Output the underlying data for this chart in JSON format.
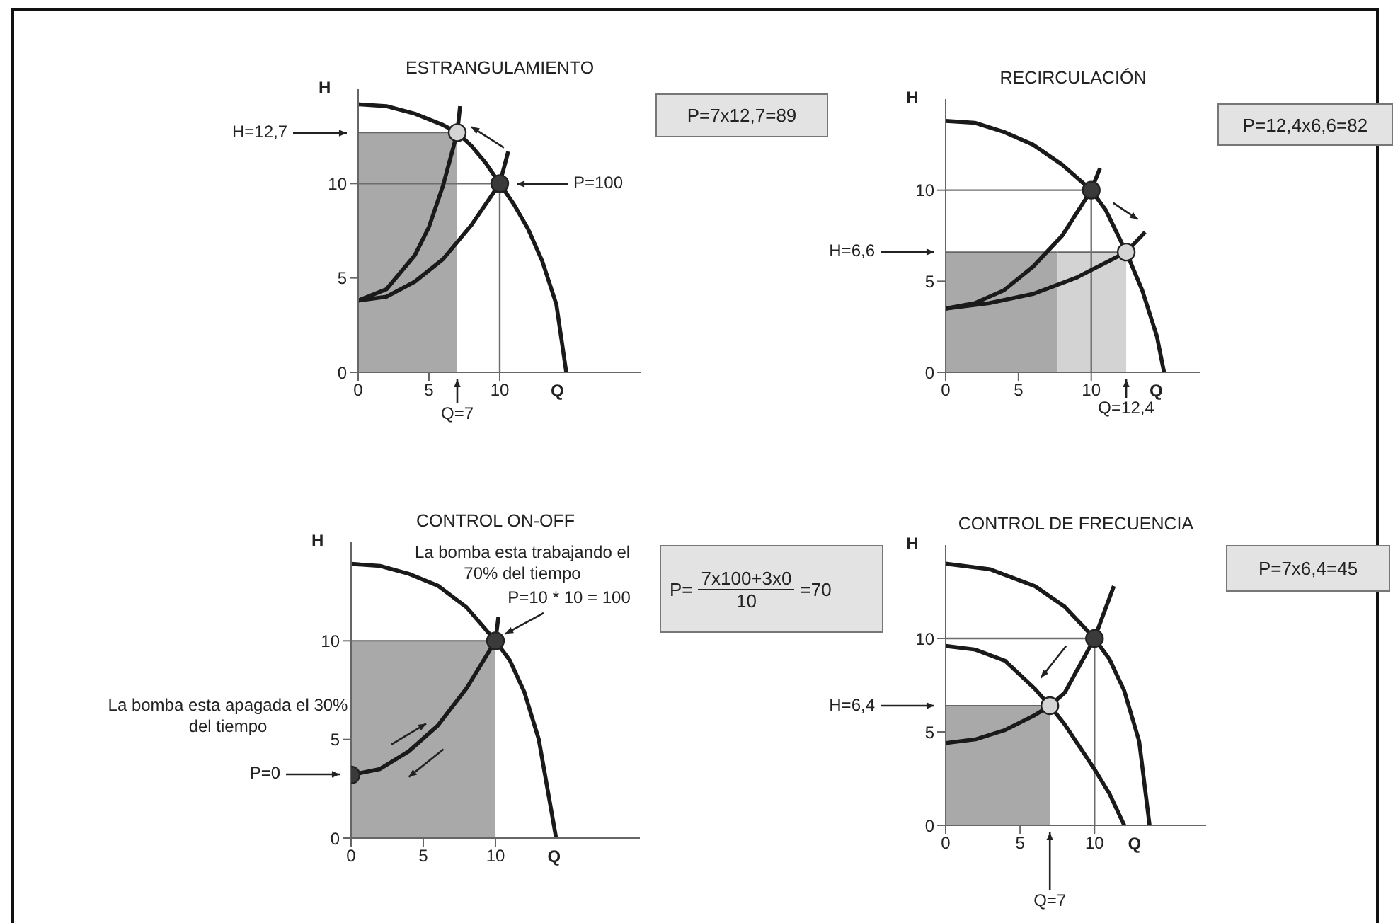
{
  "chart_data": [
    {
      "type": "line",
      "title": "ESTRANGULAMIENTO",
      "xlabel": "Q",
      "ylabel": "H",
      "xlim": [
        0,
        20
      ],
      "ylim": [
        0,
        15
      ],
      "xticks": [
        0,
        5,
        10
      ],
      "yticks": [
        0,
        5,
        10
      ],
      "series": [
        {
          "type": "area",
          "x": [
            0,
            7
          ],
          "values": [
            12.7,
            12.7
          ],
          "color": "#a9a9a9"
        },
        {
          "type": "line",
          "x": [
            0,
            10,
            10
          ],
          "values": [
            10,
            10,
            0
          ],
          "color": "#6e6e6e"
        },
        {
          "type": "line",
          "x": [
            0,
            2,
            4,
            6,
            7,
            8,
            9,
            10,
            11,
            12,
            13,
            14,
            14.7
          ],
          "values": [
            14.2,
            14.1,
            13.7,
            13.1,
            12.7,
            12,
            11.1,
            10,
            8.9,
            7.6,
            5.9,
            3.6,
            0
          ],
          "color": "#1a1a1a"
        },
        {
          "type": "line",
          "x": [
            0,
            2,
            4,
            6,
            8,
            10,
            10.6
          ],
          "values": [
            3.8,
            4,
            4.8,
            6,
            7.8,
            10,
            11.7
          ],
          "color": "#1a1a1a"
        },
        {
          "type": "line",
          "x": [
            0,
            2,
            4,
            5,
            6,
            7,
            7.2
          ],
          "values": [
            3.8,
            4.4,
            6.2,
            7.7,
            9.9,
            12.7,
            14.1
          ],
          "color": "#1a1a1a"
        },
        {
          "type": "scatter",
          "x": [
            10,
            7
          ],
          "values": [
            10,
            12.7
          ],
          "colors": [
            "#3a3a3a",
            "#d4d4d4"
          ]
        }
      ],
      "annotations": [
        "H=12,7",
        "P=100",
        {
          "text": "Q=7",
          "x": 7,
          "y": 0
        },
        "P=7x12,7=89"
      ]
    },
    {
      "type": "line",
      "title": "RECIRCULACIÓN",
      "xlabel": "Q",
      "ylabel": "H",
      "xlim": [
        0,
        17.5
      ],
      "ylim": [
        0,
        15
      ],
      "xticks": [
        0,
        5,
        10
      ],
      "yticks": [
        0,
        5,
        10
      ],
      "series": [
        {
          "type": "area",
          "x": [
            0,
            7.7
          ],
          "values": [
            6.6,
            6.6
          ],
          "color": "#a9a9a9"
        },
        {
          "type": "area",
          "x": [
            7.7,
            12.4
          ],
          "values": [
            6.6,
            6.6
          ],
          "color": "#d3d3d3"
        },
        {
          "type": "line",
          "x": [
            0,
            10,
            10
          ],
          "values": [
            10,
            10,
            0
          ],
          "color": "#6e6e6e"
        },
        {
          "type": "line",
          "x": [
            0,
            2,
            4,
            6,
            8,
            10,
            11,
            12.4,
            13.5,
            14.5,
            15
          ],
          "values": [
            13.8,
            13.7,
            13.2,
            12.5,
            11.4,
            10,
            8.9,
            6.6,
            4.5,
            2,
            0
          ],
          "color": "#1a1a1a"
        },
        {
          "type": "line",
          "x": [
            0,
            2,
            4,
            6,
            8,
            10,
            10.6
          ],
          "values": [
            3.5,
            3.8,
            4.5,
            5.8,
            7.5,
            10,
            11.2
          ],
          "color": "#1a1a1a"
        },
        {
          "type": "line",
          "x": [
            0,
            3,
            6,
            9,
            12.4,
            13.7
          ],
          "values": [
            3.5,
            3.8,
            4.3,
            5.2,
            6.6,
            7.7
          ],
          "color": "#1a1a1a"
        },
        {
          "type": "scatter",
          "x": [
            10,
            12.4
          ],
          "values": [
            10,
            6.6
          ],
          "colors": [
            "#3a3a3a",
            "#d4d4d4"
          ]
        }
      ],
      "annotations": [
        "H=6,6",
        {
          "text": "Q=12,4",
          "x": 12.4,
          "y": 0
        },
        "P=12,4x6,6=82"
      ]
    },
    {
      "type": "line",
      "title": "CONTROL ON-OFF",
      "xlabel": "Q",
      "ylabel": "H",
      "xlim": [
        0,
        20
      ],
      "ylim": [
        0,
        15
      ],
      "xticks": [
        0,
        5,
        10
      ],
      "yticks": [
        0,
        5,
        10
      ],
      "series": [
        {
          "type": "area",
          "x": [
            0,
            10
          ],
          "values": [
            10,
            10
          ],
          "color": "#a9a9a9"
        },
        {
          "type": "line",
          "x": [
            0,
            2,
            4,
            6,
            8,
            10,
            11,
            12,
            13,
            14.2
          ],
          "values": [
            13.9,
            13.8,
            13.4,
            12.8,
            11.7,
            10,
            9,
            7.4,
            5,
            0
          ],
          "color": "#1a1a1a"
        },
        {
          "type": "line",
          "x": [
            0,
            2,
            4,
            6,
            8,
            10,
            10.2
          ],
          "values": [
            3.2,
            3.5,
            4.4,
            5.7,
            7.6,
            10,
            11.2
          ],
          "color": "#1a1a1a"
        },
        {
          "type": "scatter",
          "x": [
            0,
            10
          ],
          "values": [
            3.2,
            10
          ],
          "colors": [
            "#3a3a3a",
            "#3a3a3a"
          ]
        }
      ],
      "annotations": [
        "La bomba esta trabajando el 70% del tiempo",
        {
          "text": "P=10 * 10 = 100",
          "x": 10,
          "y": 10
        },
        "La bomba esta apagada el 30% del tiempo",
        "P=0",
        "P=",
        "7x100+3x0",
        "10",
        "=70"
      ]
    },
    {
      "type": "line",
      "title": "CONTROL DE FRECUENCIA",
      "xlabel": "Q",
      "ylabel": "H",
      "xlim": [
        0,
        17.5
      ],
      "ylim": [
        0,
        15
      ],
      "xticks": [
        0,
        5,
        10
      ],
      "yticks": [
        0,
        5,
        10
      ],
      "series": [
        {
          "type": "area",
          "x": [
            0,
            7
          ],
          "values": [
            6.4,
            6.4
          ],
          "color": "#a9a9a9"
        },
        {
          "type": "line",
          "x": [
            0,
            10,
            10
          ],
          "values": [
            10,
            10,
            0
          ],
          "color": "#6e6e6e"
        },
        {
          "type": "line",
          "x": [
            0,
            3,
            6,
            8,
            10,
            11,
            12,
            13,
            13.7
          ],
          "values": [
            14,
            13.7,
            12.8,
            11.7,
            10,
            8.9,
            7.2,
            4.5,
            0
          ],
          "color": "#1a1a1a"
        },
        {
          "type": "line",
          "x": [
            0,
            2,
            4,
            6,
            7,
            8,
            9,
            10,
            11,
            12
          ],
          "values": [
            9.6,
            9.4,
            8.8,
            7.3,
            6.4,
            5.4,
            4.2,
            3,
            1.7,
            0
          ],
          "color": "#1a1a1a"
        },
        {
          "type": "line",
          "x": [
            0,
            2,
            4,
            6,
            7,
            8,
            10,
            10.6,
            11.3
          ],
          "values": [
            4.4,
            4.6,
            5.1,
            5.9,
            6.4,
            7.1,
            10,
            11.3,
            12.8
          ],
          "color": "#1a1a1a"
        },
        {
          "type": "scatter",
          "x": [
            10,
            7
          ],
          "values": [
            10,
            6.4
          ],
          "colors": [
            "#3a3a3a",
            "#d4d4d4"
          ]
        }
      ],
      "annotations": [
        "H=6,4",
        "Q=7",
        "P=7x6,4=45"
      ]
    }
  ]
}
